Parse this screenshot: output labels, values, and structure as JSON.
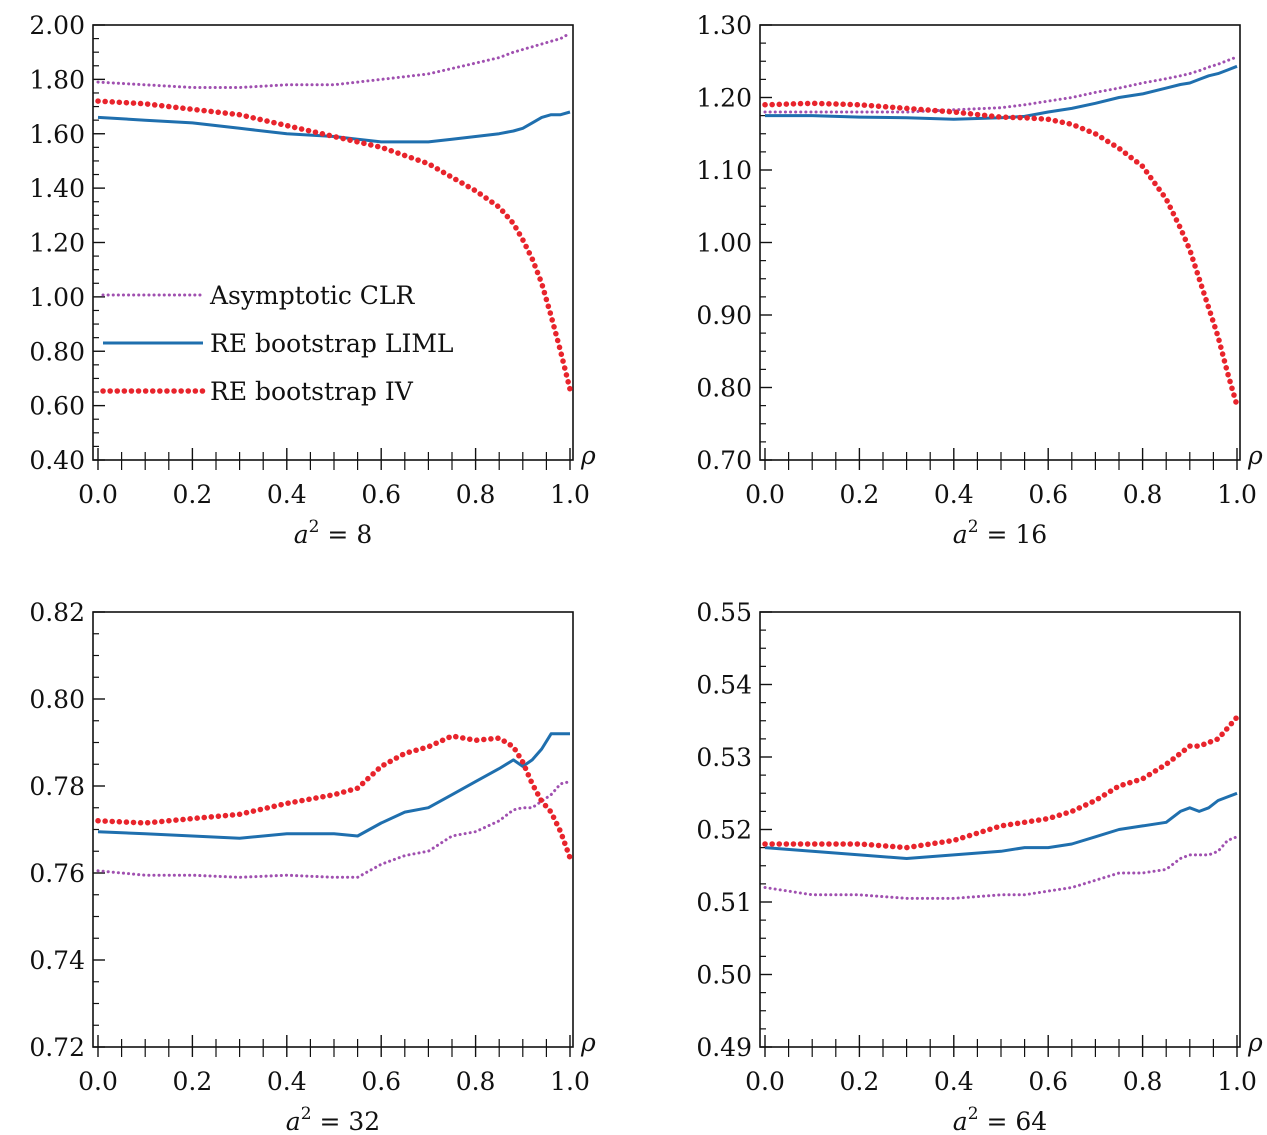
{
  "colors": {
    "asymptotic_clr": "#a050b0",
    "re_bootstrap_liml": "#1f6fae",
    "re_bootstrap_iv": "#e8242c",
    "axis": "#111111"
  },
  "legend": {
    "entries": [
      "Asymptotic CLR",
      "RE bootstrap LIML",
      "RE bootstrap IV"
    ]
  },
  "chart_data": [
    {
      "type": "line",
      "panel": "a2-8",
      "caption_var": "a",
      "caption_exp": "2",
      "caption_rest": " = 8",
      "xlabel": "ρ",
      "xlim": [
        0,
        1
      ],
      "ylim": [
        0.4,
        2.0
      ],
      "xticks": [
        "0.0",
        "0.2",
        "0.4",
        "0.6",
        "0.8",
        "1.0"
      ],
      "yticks": [
        "0.40",
        "0.60",
        "0.80",
        "1.00",
        "1.20",
        "1.40",
        "1.60",
        "1.80",
        "2.00"
      ],
      "legend_position": "center-left",
      "x": [
        0.0,
        0.1,
        0.2,
        0.3,
        0.4,
        0.5,
        0.55,
        0.6,
        0.65,
        0.7,
        0.75,
        0.8,
        0.85,
        0.88,
        0.9,
        0.92,
        0.94,
        0.96,
        0.98,
        1.0
      ],
      "series": [
        {
          "name": "Asymptotic CLR",
          "style": "dotted-thin",
          "values": [
            1.79,
            1.78,
            1.77,
            1.77,
            1.78,
            1.78,
            1.79,
            1.8,
            1.81,
            1.82,
            1.84,
            1.86,
            1.88,
            1.9,
            1.91,
            1.92,
            1.93,
            1.94,
            1.95,
            1.97
          ]
        },
        {
          "name": "RE bootstrap LIML",
          "style": "solid",
          "values": [
            1.66,
            1.65,
            1.64,
            1.62,
            1.6,
            1.59,
            1.58,
            1.57,
            1.57,
            1.57,
            1.58,
            1.59,
            1.6,
            1.61,
            1.62,
            1.64,
            1.66,
            1.67,
            1.67,
            1.68
          ]
        },
        {
          "name": "RE bootstrap IV",
          "style": "dotted-thick",
          "values": [
            1.72,
            1.71,
            1.69,
            1.67,
            1.63,
            1.59,
            1.57,
            1.55,
            1.52,
            1.49,
            1.44,
            1.39,
            1.33,
            1.27,
            1.21,
            1.14,
            1.05,
            0.93,
            0.8,
            0.66
          ]
        }
      ]
    },
    {
      "type": "line",
      "panel": "a2-16",
      "caption_var": "a",
      "caption_exp": "2",
      "caption_rest": " = 16",
      "xlabel": "ρ",
      "xlim": [
        0,
        1
      ],
      "ylim": [
        0.7,
        1.3
      ],
      "xticks": [
        "0.0",
        "0.2",
        "0.4",
        "0.6",
        "0.8",
        "1.0"
      ],
      "yticks": [
        "0.70",
        "0.80",
        "0.90",
        "1.00",
        "1.10",
        "1.20",
        "1.30"
      ],
      "x": [
        0.0,
        0.1,
        0.2,
        0.3,
        0.4,
        0.5,
        0.55,
        0.6,
        0.65,
        0.7,
        0.75,
        0.8,
        0.85,
        0.88,
        0.9,
        0.92,
        0.94,
        0.96,
        0.98,
        1.0
      ],
      "series": [
        {
          "name": "Asymptotic CLR",
          "style": "dotted-thin",
          "values": [
            1.18,
            1.18,
            1.18,
            1.18,
            1.183,
            1.186,
            1.19,
            1.195,
            1.2,
            1.207,
            1.213,
            1.22,
            1.226,
            1.23,
            1.233,
            1.237,
            1.242,
            1.246,
            1.251,
            1.256
          ]
        },
        {
          "name": "RE bootstrap LIML",
          "style": "solid",
          "values": [
            1.175,
            1.175,
            1.173,
            1.172,
            1.17,
            1.172,
            1.174,
            1.18,
            1.185,
            1.192,
            1.2,
            1.205,
            1.213,
            1.218,
            1.22,
            1.225,
            1.23,
            1.233,
            1.238,
            1.243
          ]
        },
        {
          "name": "RE bootstrap IV",
          "style": "dotted-thick",
          "values": [
            1.19,
            1.192,
            1.19,
            1.185,
            1.18,
            1.173,
            1.172,
            1.17,
            1.163,
            1.15,
            1.13,
            1.105,
            1.06,
            1.02,
            0.99,
            0.95,
            0.91,
            0.87,
            0.82,
            0.775
          ]
        }
      ]
    },
    {
      "type": "line",
      "panel": "a2-32",
      "caption_var": "a",
      "caption_exp": "2",
      "caption_rest": " = 32",
      "xlabel": "ρ",
      "xlim": [
        0,
        1
      ],
      "ylim": [
        0.72,
        0.82
      ],
      "xticks": [
        "0.0",
        "0.2",
        "0.4",
        "0.6",
        "0.8",
        "1.0"
      ],
      "yticks": [
        "0.72",
        "0.74",
        "0.76",
        "0.78",
        "0.80",
        "0.82"
      ],
      "x": [
        0.0,
        0.1,
        0.2,
        0.3,
        0.4,
        0.5,
        0.55,
        0.6,
        0.65,
        0.7,
        0.75,
        0.8,
        0.85,
        0.88,
        0.9,
        0.92,
        0.94,
        0.96,
        0.98,
        1.0
      ],
      "series": [
        {
          "name": "Asymptotic CLR",
          "style": "dotted-thin",
          "values": [
            0.7605,
            0.7595,
            0.7595,
            0.759,
            0.7595,
            0.759,
            0.759,
            0.762,
            0.764,
            0.765,
            0.7685,
            0.7695,
            0.772,
            0.7745,
            0.775,
            0.775,
            0.7765,
            0.778,
            0.7805,
            0.781
          ]
        },
        {
          "name": "RE bootstrap LIML",
          "style": "solid",
          "values": [
            0.7695,
            0.769,
            0.7685,
            0.768,
            0.769,
            0.769,
            0.7685,
            0.7715,
            0.774,
            0.775,
            0.778,
            0.781,
            0.784,
            0.786,
            0.7845,
            0.786,
            0.7885,
            0.792,
            0.792,
            0.792
          ]
        },
        {
          "name": "RE bootstrap IV",
          "style": "dotted-thick",
          "values": [
            0.772,
            0.7715,
            0.7725,
            0.7735,
            0.776,
            0.778,
            0.7795,
            0.7845,
            0.7875,
            0.789,
            0.7915,
            0.7905,
            0.791,
            0.789,
            0.7855,
            0.7805,
            0.7765,
            0.774,
            0.7695,
            0.7635
          ]
        }
      ]
    },
    {
      "type": "line",
      "panel": "a2-64",
      "caption_var": "a",
      "caption_exp": "2",
      "caption_rest": " = 64",
      "xlabel": "ρ",
      "xlim": [
        0,
        1
      ],
      "ylim": [
        0.49,
        0.55
      ],
      "xticks": [
        "0.0",
        "0.2",
        "0.4",
        "0.6",
        "0.8",
        "1.0"
      ],
      "yticks": [
        "0.49",
        "0.50",
        "0.51",
        "0.52",
        "0.53",
        "0.54",
        "0.55"
      ],
      "x": [
        0.0,
        0.1,
        0.2,
        0.3,
        0.4,
        0.5,
        0.55,
        0.6,
        0.65,
        0.7,
        0.75,
        0.8,
        0.85,
        0.88,
        0.9,
        0.92,
        0.94,
        0.96,
        0.98,
        1.0
      ],
      "series": [
        {
          "name": "Asymptotic CLR",
          "style": "dotted-thin",
          "values": [
            0.512,
            0.511,
            0.511,
            0.5105,
            0.5105,
            0.511,
            0.511,
            0.5115,
            0.512,
            0.513,
            0.514,
            0.514,
            0.5145,
            0.516,
            0.5165,
            0.5165,
            0.5165,
            0.517,
            0.5185,
            0.519
          ]
        },
        {
          "name": "RE bootstrap LIML",
          "style": "solid",
          "values": [
            0.5175,
            0.517,
            0.5165,
            0.516,
            0.5165,
            0.517,
            0.5175,
            0.5175,
            0.518,
            0.519,
            0.52,
            0.5205,
            0.521,
            0.5225,
            0.523,
            0.5225,
            0.523,
            0.524,
            0.5245,
            0.525
          ]
        },
        {
          "name": "RE bootstrap IV",
          "style": "dotted-thick",
          "values": [
            0.518,
            0.518,
            0.518,
            0.5175,
            0.5185,
            0.5205,
            0.521,
            0.5215,
            0.5225,
            0.524,
            0.526,
            0.527,
            0.529,
            0.5305,
            0.5315,
            0.5315,
            0.532,
            0.5325,
            0.534,
            0.5355
          ]
        }
      ]
    }
  ]
}
